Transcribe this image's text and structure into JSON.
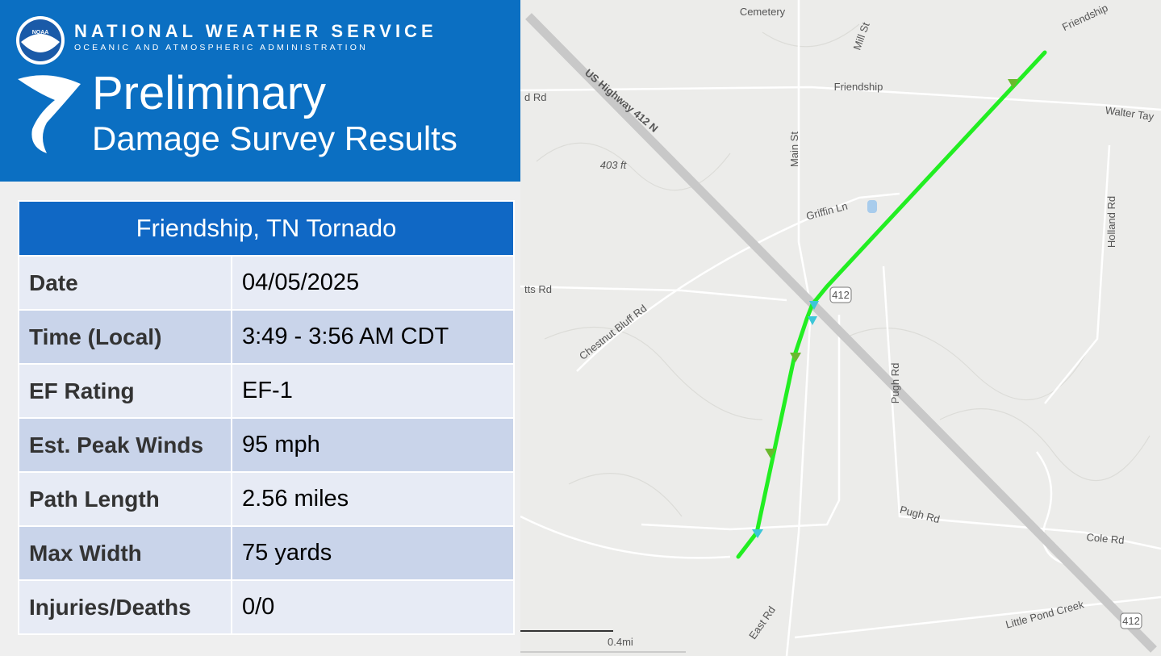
{
  "header": {
    "logo_text": "NOAA",
    "agency": "NATIONAL WEATHER SERVICE",
    "subagency": "OCEANIC AND ATMOSPHERIC ADMINISTRATION",
    "title": "Preliminary",
    "subtitle": "Damage Survey Results"
  },
  "table": {
    "title": "Friendship, TN Tornado",
    "rows": [
      [
        "Date",
        "04/05/2025"
      ],
      [
        "Time (Local)",
        "3:49 - 3:56 AM CDT"
      ],
      [
        "EF Rating",
        "EF-1"
      ],
      [
        "Est. Peak Winds",
        "95 mph"
      ],
      [
        "Path Length",
        "2.56 miles"
      ],
      [
        "Max Width",
        "75 yards"
      ],
      [
        "Injuries/Deaths",
        "0/0"
      ]
    ]
  },
  "map": {
    "labels": [
      "Cemetery",
      "Mill St",
      "Friendship",
      "Friendship",
      "d Rd",
      "US Highway 412 N",
      "Walter Tay",
      "403 ft",
      "Main St",
      "Griffin Ln",
      "Holland Rd",
      "tts Rd",
      "412",
      "Chestnut Bluff Rd",
      "Pugh Rd",
      "Pugh Rd",
      "Cole Rd",
      "East Rd",
      "Little Pond Creek",
      "412"
    ],
    "scale": "0.4mi"
  }
}
